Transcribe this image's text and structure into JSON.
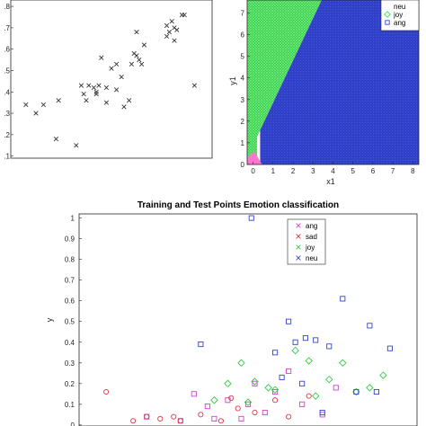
{
  "chart_data": [
    {
      "type": "scatter",
      "title": "",
      "xlabel": "",
      "ylabel": "",
      "ylim": [
        0.1,
        0.8
      ],
      "y_ticks": [
        "0.1",
        "0.2",
        "0.3",
        "0.4",
        "0.5",
        "0.6",
        "0.7",
        "0.8"
      ],
      "xlim": [
        0.0,
        0.8
      ],
      "marker": "x",
      "color": "#333333",
      "series": [
        {
          "x": [
            0.06,
            0.1,
            0.13,
            0.18,
            0.19,
            0.26,
            0.28,
            0.29,
            0.3,
            0.31,
            0.33,
            0.34,
            0.34,
            0.35,
            0.36,
            0.38,
            0.38,
            0.4,
            0.42,
            0.42,
            0.44,
            0.45,
            0.47,
            0.48,
            0.49,
            0.5,
            0.5,
            0.51,
            0.52,
            0.53,
            0.62,
            0.62,
            0.63,
            0.64,
            0.65,
            0.65,
            0.66,
            0.68,
            0.69,
            0.73
          ],
          "y": [
            0.34,
            0.3,
            0.34,
            0.18,
            0.36,
            0.15,
            0.43,
            0.39,
            0.36,
            0.43,
            0.42,
            0.4,
            0.39,
            0.43,
            0.56,
            0.42,
            0.35,
            0.51,
            0.53,
            0.41,
            0.47,
            0.33,
            0.36,
            0.53,
            0.58,
            0.68,
            0.57,
            0.55,
            0.53,
            0.62,
            0.71,
            0.66,
            0.68,
            0.73,
            0.7,
            0.64,
            0.69,
            0.76,
            0.76,
            0.43
          ]
        }
      ]
    },
    {
      "type": "heatmap",
      "title": "",
      "xlabel": "x1",
      "ylabel": "y1",
      "xlim": [
        -0.3,
        8.3
      ],
      "ylim": [
        0,
        7.6
      ],
      "x_ticks": [
        "0",
        "1",
        "2",
        "3",
        "4",
        "5",
        "6",
        "7",
        "8"
      ],
      "y_ticks": [
        "0",
        "1",
        "2",
        "3",
        "4",
        "5",
        "6",
        "7"
      ],
      "legend": [
        "neu",
        "joy",
        "ang"
      ],
      "legend_markers": [
        "o",
        "diamond",
        "square"
      ],
      "legend_position": "top-right",
      "regions": [
        {
          "label": "neu",
          "color": "#ff66cc",
          "description": "corner near origin"
        },
        {
          "label": "joy",
          "color": "#33ee55",
          "boundary_slope": 1.95,
          "boundary_intercept": 0.9
        },
        {
          "label": "ang",
          "color": "#3344ee"
        }
      ]
    },
    {
      "type": "scatter",
      "title": "Training and Test Points Emotion classification",
      "xlabel": "",
      "ylabel": "y",
      "ylim": [
        0,
        1
      ],
      "y_ticks": [
        "0",
        "0.1",
        "0.2",
        "0.3",
        "0.4",
        "0.5",
        "0.6",
        "0.7",
        "0.8",
        "0.9",
        "1"
      ],
      "xlim": [
        0,
        1
      ],
      "legend": [
        {
          "name": "ang",
          "marker": "x",
          "color": "#cc44cc"
        },
        {
          "name": "sad",
          "marker": "x",
          "color": "#dd3344"
        },
        {
          "name": "joy",
          "marker": "x",
          "color": "#33cc44"
        },
        {
          "name": "neu",
          "marker": "x",
          "color": "#3344cc"
        }
      ],
      "legend_position": "top-right",
      "series": [
        {
          "name": "ang",
          "marker": "square",
          "color": "#cc44cc",
          "x": [
            0.2,
            0.3,
            0.38,
            0.44,
            0.48,
            0.52,
            0.55,
            0.58,
            0.62,
            0.66,
            0.72,
            0.76,
            0.5,
            0.4,
            0.34
          ],
          "y": [
            0.04,
            0.02,
            0.09,
            0.12,
            0.03,
            0.2,
            0.06,
            0.16,
            0.26,
            0.1,
            0.05,
            0.18,
            0.1,
            0.03,
            0.15
          ]
        },
        {
          "name": "sad",
          "marker": "circle",
          "color": "#dd3344",
          "x": [
            0.08,
            0.16,
            0.24,
            0.3,
            0.36,
            0.42,
            0.47,
            0.52,
            0.58,
            0.62,
            0.68,
            0.45,
            0.28,
            0.2
          ],
          "y": [
            0.16,
            0.02,
            0.03,
            0.02,
            0.05,
            0.02,
            0.08,
            0.06,
            0.12,
            0.04,
            0.14,
            0.13,
            0.04,
            0.04
          ]
        },
        {
          "name": "joy",
          "marker": "diamond",
          "color": "#33cc44",
          "x": [
            0.4,
            0.44,
            0.48,
            0.52,
            0.58,
            0.64,
            0.7,
            0.74,
            0.78,
            0.82,
            0.86,
            0.9,
            0.68,
            0.56,
            0.5
          ],
          "y": [
            0.12,
            0.2,
            0.3,
            0.21,
            0.17,
            0.36,
            0.14,
            0.22,
            0.3,
            0.16,
            0.18,
            0.24,
            0.31,
            0.18,
            0.11
          ]
        },
        {
          "name": "neu",
          "marker": "square",
          "color": "#3344cc",
          "x": [
            0.36,
            0.51,
            0.58,
            0.62,
            0.64,
            0.67,
            0.7,
            0.74,
            0.78,
            0.82,
            0.86,
            0.88,
            0.92,
            0.72,
            0.66,
            0.6
          ],
          "y": [
            0.39,
            1.0,
            0.35,
            0.5,
            0.4,
            0.42,
            0.41,
            0.38,
            0.61,
            0.16,
            0.48,
            0.16,
            0.37,
            0.06,
            0.2,
            0.23
          ]
        }
      ]
    }
  ]
}
